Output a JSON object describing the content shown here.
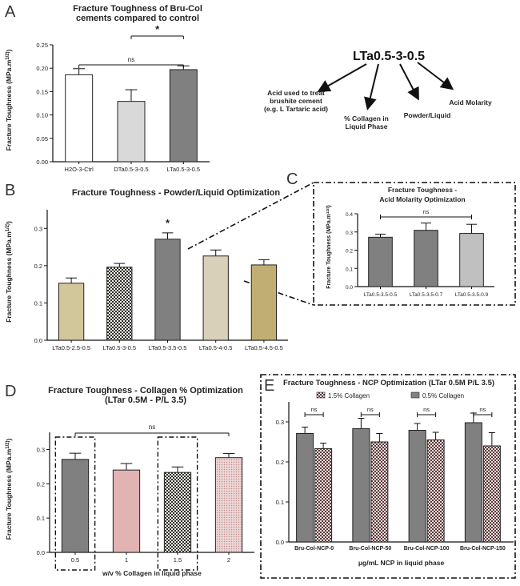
{
  "colors": {
    "white": "#ffffff",
    "lightgrey": "#d9d9d9",
    "grey": "#808080",
    "silver": "#c0c0c0",
    "olive": "#d2c79a",
    "olivedark": "#c0ae72",
    "beige": "#d8d0b8",
    "pink": "#e2b3b3",
    "checker_dark": "#2e2e2e"
  },
  "chart_data": [
    {
      "panel": "A",
      "type": "bar",
      "title": [
        "Fracture Toughness of Bru-Col",
        "cements compared to control"
      ],
      "ylabel": "Fracture Toughness (MPa.m^1/2)",
      "ylim": [
        0,
        0.25
      ],
      "yticks": [
        "0.00",
        "0.05",
        "0.10",
        "0.15",
        "0.20",
        "0.25"
      ],
      "categories": [
        "H2O-3-Ctrl",
        "DTa0.5-3-0.5",
        "LTa0.5-3-0.5"
      ],
      "values": [
        0.186,
        0.129,
        0.197
      ],
      "errors": [
        0.013,
        0.025,
        0.008
      ],
      "fills": [
        "white",
        "lightgrey",
        "grey"
      ],
      "sig": [
        {
          "label": "ns",
          "from": 0,
          "to": 2
        },
        {
          "label": "*",
          "from": 1,
          "to": 2
        }
      ]
    },
    {
      "panel": "B",
      "type": "bar",
      "title": [
        "Fracture Toughness - Powder/Liquid Optimization"
      ],
      "ylabel": "Fracture Toughness (MPa.m^1/2)",
      "ylim": [
        0,
        0.35
      ],
      "yticks": [
        "0.0",
        "0.1",
        "0.2",
        "0.3"
      ],
      "categories": [
        "LTa0.5-2.5-0.5",
        "LTa0.5-3-0.5",
        "LTa0.5-3.5-0.5",
        "LTa0.5-4-0.5",
        "LTa0.5-4.5-0.5"
      ],
      "values": [
        0.153,
        0.196,
        0.271,
        0.226,
        0.202
      ],
      "errors": [
        0.014,
        0.01,
        0.017,
        0.016,
        0.014
      ],
      "fills": [
        "olive",
        "checker",
        "grey",
        "beige",
        "olivedark"
      ],
      "stars": [
        {
          "label": "*",
          "index": 2
        }
      ]
    },
    {
      "panel": "C",
      "type": "bar",
      "title": [
        "Fracture Toughness -",
        "Acid Molarity Optimization"
      ],
      "ylabel": "Fracture Toughness (MPa.m^1/2)",
      "ylim": [
        0,
        0.4
      ],
      "yticks": [
        "0.0",
        "0.1",
        "0.2",
        "0.3",
        "0.4"
      ],
      "categories": [
        "LTa0.5-3.5-0.5",
        "LTa0.5-3.5-0.7",
        "LTa0.5-3.5-0.9"
      ],
      "values": [
        0.271,
        0.309,
        0.292
      ],
      "errors": [
        0.017,
        0.04,
        0.05
      ],
      "fills": [
        "grey",
        "grey",
        "silver"
      ],
      "sig": [
        {
          "label": "ns",
          "from": 0,
          "to": 2
        }
      ]
    },
    {
      "panel": "D",
      "type": "bar",
      "title": [
        "Fracture Toughness - Collagen % Optimization",
        "(LTar 0.5M - P/L 3.5)"
      ],
      "ylabel": "Fracture Toughness (MPa.m^1/2)",
      "xlabel": "w/v % Collagen in liquid phase",
      "ylim": [
        0,
        0.35
      ],
      "yticks": [
        "0.0",
        "0.1",
        "0.2",
        "0.3"
      ],
      "categories": [
        "0.5",
        "1",
        "1.5",
        "2"
      ],
      "values": [
        0.271,
        0.24,
        0.233,
        0.276
      ],
      "errors": [
        0.018,
        0.019,
        0.016,
        0.012
      ],
      "fills": [
        "grey",
        "pink",
        "checker",
        "pinkdots"
      ],
      "sig": [
        {
          "label": "ns",
          "from": 0,
          "to": 3
        }
      ]
    },
    {
      "panel": "E",
      "type": "bar",
      "title": [
        "Fracture Toughness - NCP Optimization (LTar 0.5M P/L 3.5)"
      ],
      "xlabel": "μg/mL NCP in liquid phase",
      "ylim": [
        0,
        0.35
      ],
      "yticks": [
        "0.0",
        "0.1",
        "0.2",
        "0.3"
      ],
      "categories": [
        "Bru-Col-NCP-0",
        "Bru-Col-NCP-50",
        "Bru-Col-NCP-100",
        "Bru-Col-NCP-150"
      ],
      "series": [
        {
          "name": "0.5% Collagen",
          "values": [
            0.271,
            0.283,
            0.279,
            0.298
          ],
          "errors": [
            0.016,
            0.026,
            0.017,
            0.024
          ],
          "fill": "grey"
        },
        {
          "name": "1.5% Collagen",
          "values": [
            0.233,
            0.25,
            0.255,
            0.24
          ],
          "errors": [
            0.014,
            0.021,
            0.019,
            0.033
          ],
          "fill": "pinkcheck"
        }
      ],
      "legend": [
        "1.5% Collagen",
        "0.5% Collagen"
      ],
      "sig": [
        {
          "label": "ns"
        },
        {
          "label": "ns"
        },
        {
          "label": "ns"
        },
        {
          "label": "ns"
        }
      ]
    }
  ],
  "naming": {
    "code": "LTa0.5-3-0.5",
    "labels": [
      [
        "Acid used to treat",
        "brushite cement",
        "(e.g. L Tartaric acid)"
      ],
      [
        "% Collagen in",
        "Liquid Phase"
      ],
      [
        "Powder/Liquid"
      ],
      [
        "Acid Molarity"
      ]
    ]
  },
  "panel_letters": [
    "A",
    "B",
    "C",
    "D",
    "E"
  ]
}
